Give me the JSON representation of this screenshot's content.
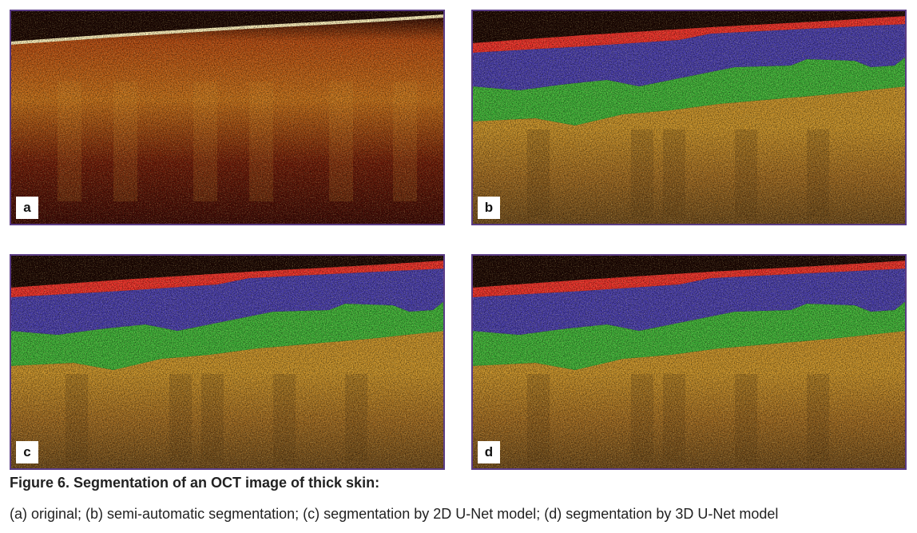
{
  "figure": {
    "panels": [
      {
        "label": "a"
      },
      {
        "label": "b"
      },
      {
        "label": "c"
      },
      {
        "label": "d"
      }
    ],
    "caption": {
      "title": "Figure 6. Segmentation of an OCT image of thick skin:",
      "text": "(a) original; (b) semi-automatic segmentation; (c) segmentation by 2D U-Net model; (d) segmentation by 3D U-Net model"
    }
  }
}
